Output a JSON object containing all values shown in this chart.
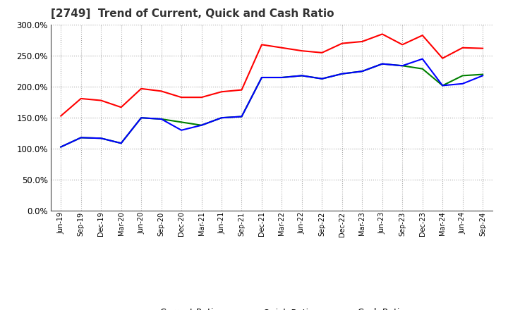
{
  "title": "[2749]  Trend of Current, Quick and Cash Ratio",
  "labels": [
    "Jun-19",
    "Sep-19",
    "Dec-19",
    "Mar-20",
    "Jun-20",
    "Sep-20",
    "Dec-20",
    "Mar-21",
    "Jun-21",
    "Sep-21",
    "Dec-21",
    "Mar-22",
    "Jun-22",
    "Sep-22",
    "Dec-22",
    "Mar-23",
    "Jun-23",
    "Sep-23",
    "Dec-23",
    "Mar-24",
    "Jun-24",
    "Sep-24"
  ],
  "current_ratio": [
    153,
    181,
    178,
    167,
    197,
    193,
    183,
    183,
    192,
    195,
    268,
    263,
    258,
    255,
    270,
    273,
    285,
    268,
    283,
    246,
    263,
    262
  ],
  "quick_ratio": [
    103,
    118,
    117,
    109,
    150,
    148,
    143,
    138,
    150,
    152,
    215,
    215,
    218,
    213,
    221,
    225,
    237,
    234,
    229,
    202,
    218,
    220
  ],
  "cash_ratio": [
    103,
    118,
    117,
    109,
    150,
    148,
    130,
    138,
    150,
    152,
    215,
    215,
    218,
    213,
    221,
    225,
    237,
    234,
    245,
    202,
    205,
    218
  ],
  "current_color": "#FF0000",
  "quick_color": "#008000",
  "cash_color": "#0000FF",
  "background_color": "#FFFFFF",
  "grid_color": "#AAAAAA",
  "ylim": [
    0,
    300
  ],
  "yticks": [
    0,
    50,
    100,
    150,
    200,
    250,
    300
  ]
}
